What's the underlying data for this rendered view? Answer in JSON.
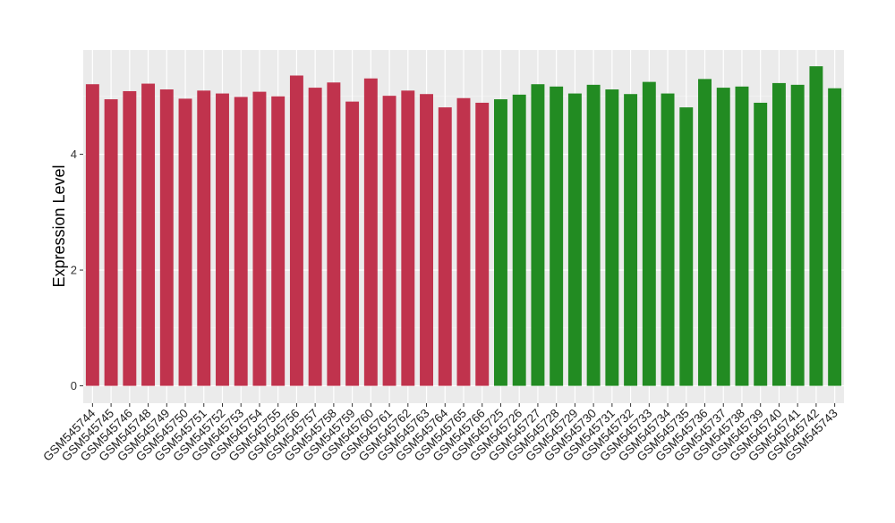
{
  "chart_data": {
    "type": "bar",
    "title": "",
    "xlabel": "",
    "ylabel": "Expression Level",
    "ylim": [
      -0.3,
      5.8
    ],
    "yticks": [
      0,
      2,
      4
    ],
    "grid": true,
    "legend": "none",
    "colors": {
      "group_a": "#c0334d",
      "group_b": "#228b22",
      "panel_bg": "#ebebeb",
      "grid_major": "#ffffff",
      "grid_minor": "#f5f5f5"
    },
    "categories": [
      "GSM545744",
      "GSM545745",
      "GSM545746",
      "GSM545748",
      "GSM545749",
      "GSM545750",
      "GSM545751",
      "GSM545752",
      "GSM545753",
      "GSM545754",
      "GSM545755",
      "GSM545756",
      "GSM545757",
      "GSM545758",
      "GSM545759",
      "GSM545760",
      "GSM545761",
      "GSM545762",
      "GSM545763",
      "GSM545764",
      "GSM545765",
      "GSM545766",
      "GSM545725",
      "GSM545726",
      "GSM545727",
      "GSM545728",
      "GSM545729",
      "GSM545730",
      "GSM545731",
      "GSM545732",
      "GSM545733",
      "GSM545734",
      "GSM545735",
      "GSM545736",
      "GSM545737",
      "GSM545738",
      "GSM545739",
      "GSM545740",
      "GSM545741",
      "GSM545742",
      "GSM545743"
    ],
    "values": [
      5.21,
      4.95,
      5.09,
      5.22,
      5.12,
      4.96,
      5.1,
      5.05,
      4.99,
      5.08,
      5.0,
      5.36,
      5.15,
      5.24,
      4.91,
      5.31,
      5.01,
      5.1,
      5.04,
      4.81,
      4.97,
      4.89,
      4.95,
      5.03,
      5.21,
      5.17,
      5.05,
      5.2,
      5.12,
      5.04,
      5.25,
      5.05,
      4.81,
      5.3,
      5.15,
      5.17,
      4.89,
      5.23,
      5.2,
      5.52,
      5.14
    ],
    "groups": [
      "group_a",
      "group_a",
      "group_a",
      "group_a",
      "group_a",
      "group_a",
      "group_a",
      "group_a",
      "group_a",
      "group_a",
      "group_a",
      "group_a",
      "group_a",
      "group_a",
      "group_a",
      "group_a",
      "group_a",
      "group_a",
      "group_a",
      "group_a",
      "group_a",
      "group_a",
      "group_b",
      "group_b",
      "group_b",
      "group_b",
      "group_b",
      "group_b",
      "group_b",
      "group_b",
      "group_b",
      "group_b",
      "group_b",
      "group_b",
      "group_b",
      "group_b",
      "group_b",
      "group_b",
      "group_b",
      "group_b",
      "group_b"
    ]
  }
}
